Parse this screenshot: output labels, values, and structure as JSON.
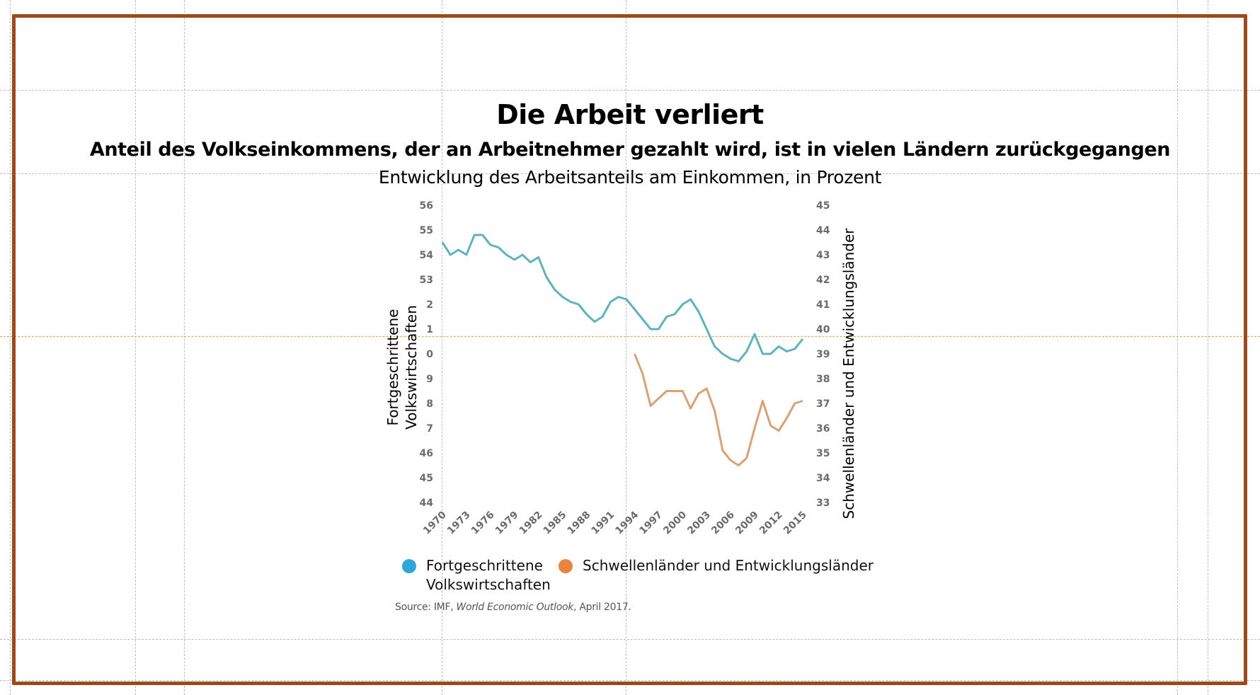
{
  "slide": {
    "title": "Die Arbeit verliert",
    "subtitle": "Anteil des Volkseinkommens, der an Arbeitnehmer gezahlt wird, ist in vielen Ländern zurückgegangen",
    "caption": "Entwicklung des Arbeitsanteils am Einkommen, in Prozent",
    "frame_color": "#9c4a1c"
  },
  "chart_data": {
    "type": "line",
    "title": "Entwicklung des Arbeitsanteils am Einkommen, in Prozent",
    "xlabel": "",
    "ylabel": "Fortgeschrittene Volkswirtschaften",
    "ylabel_right": "Schwellenländer und Entwicklungsländer",
    "x_tick_labels": [
      "1970",
      "1973",
      "1976",
      "1979",
      "1982",
      "1985",
      "1988",
      "1991",
      "1994",
      "1997",
      "2000",
      "2003",
      "2006",
      "2009",
      "2012",
      "2015"
    ],
    "y_left_tick_labels": [
      "56",
      "55",
      "54",
      "53",
      "2",
      "1",
      "0",
      "9",
      "8",
      "7",
      "46",
      "45",
      "44"
    ],
    "y_right_tick_labels": [
      "45",
      "44",
      "43",
      "42",
      "41",
      "40",
      "39",
      "38",
      "37",
      "36",
      "35",
      "34",
      "33"
    ],
    "xlim": [
      1970,
      2015
    ],
    "ylim_left": [
      44,
      56
    ],
    "ylim_right": [
      33,
      45
    ],
    "grid": false,
    "legend_position": "bottom",
    "series": [
      {
        "name": "Fortgeschrittene Volkswirtschaften",
        "axis": "left",
        "color": "#5fb3bd",
        "legend_color": "#2ea6d8",
        "x": [
          1970,
          1971,
          1972,
          1973,
          1974,
          1975,
          1976,
          1977,
          1978,
          1979,
          1980,
          1981,
          1982,
          1983,
          1984,
          1985,
          1986,
          1987,
          1988,
          1989,
          1990,
          1991,
          1992,
          1993,
          1994,
          1995,
          1996,
          1997,
          1998,
          1999,
          2000,
          2001,
          2002,
          2003,
          2004,
          2005,
          2006,
          2007,
          2008,
          2009,
          2010,
          2011,
          2012,
          2013,
          2014,
          2015
        ],
        "values": [
          54.5,
          54.0,
          54.2,
          54.0,
          54.8,
          54.8,
          54.4,
          54.3,
          54.0,
          53.8,
          54.0,
          53.7,
          53.9,
          53.1,
          52.6,
          52.3,
          52.1,
          52.0,
          51.6,
          51.3,
          51.5,
          52.1,
          52.3,
          52.2,
          51.8,
          51.4,
          51.0,
          51.0,
          51.5,
          51.6,
          52.0,
          52.2,
          51.7,
          51.0,
          50.3,
          50.0,
          49.8,
          49.7,
          50.1,
          50.8,
          50.0,
          50.0,
          50.3,
          50.1,
          50.2,
          50.6
        ]
      },
      {
        "name": "Schwellenländer und Entwicklungsländer",
        "axis": "right",
        "color": "#d9a274",
        "legend_color": "#e8843e",
        "x": [
          1994,
          1995,
          1996,
          1997,
          1998,
          1999,
          2000,
          2001,
          2002,
          2003,
          2004,
          2005,
          2006,
          2007,
          2008,
          2009,
          2010,
          2011,
          2012,
          2013,
          2014,
          2015
        ],
        "values": [
          39.0,
          38.2,
          36.9,
          37.2,
          37.5,
          37.5,
          37.5,
          36.8,
          37.4,
          37.6,
          36.7,
          35.1,
          34.7,
          34.5,
          34.8,
          36.0,
          37.1,
          36.1,
          35.9,
          36.4,
          37.0,
          37.1
        ]
      }
    ],
    "legend": [
      {
        "label_line1": "Fortgeschrittene",
        "label_line2": "Volkswirtschaften"
      },
      {
        "label_line1": "Schwellenländer und Entwicklungsländer",
        "label_line2": ""
      }
    ],
    "source_prefix": "Source: IMF, ",
    "source_italic": "World Economic Outlook",
    "source_suffix": ", April 2017."
  }
}
